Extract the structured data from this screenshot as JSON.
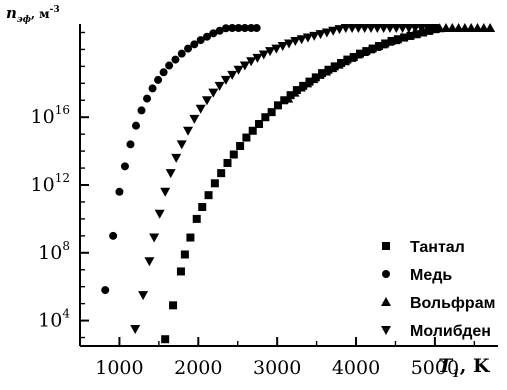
{
  "chart_data": {
    "type": "scatter",
    "ylabel": "n",
    "ylabel_sub": "эф",
    "ylabel_unit": ", м",
    "ylabel_unit_sup": "-3",
    "xlabel": "T",
    "xlabel_sub": "1",
    "xlabel_unit": ", K",
    "xlim": [
      500,
      5800
    ],
    "ylim_log10": [
      2.5,
      21.5
    ],
    "x_scale": "linear",
    "y_scale": "log",
    "x_ticks": [
      {
        "value": 1000,
        "label": "1000"
      },
      {
        "value": 2000,
        "label": "2000"
      },
      {
        "value": 3000,
        "label": "3000"
      },
      {
        "value": 4000,
        "label": "4000"
      },
      {
        "value": 5000,
        "label": "5000"
      }
    ],
    "y_ticks": [
      {
        "exp": 4,
        "base": "10",
        "sup": "4"
      },
      {
        "exp": 8,
        "base": "10",
        "sup": "8"
      },
      {
        "exp": 12,
        "base": "10",
        "sup": "12"
      },
      {
        "exp": 16,
        "base": "10",
        "sup": "16"
      }
    ],
    "legend_position": "bottom-right",
    "series": [
      {
        "name": "Тантал",
        "marker": "square",
        "points": [
          [
            1580,
            2.9
          ],
          [
            1680,
            4.9
          ],
          [
            1780,
            6.9
          ],
          [
            1830,
            7.9
          ],
          [
            1900,
            8.9
          ],
          [
            1980,
            10.0
          ],
          [
            2050,
            10.7
          ],
          [
            2130,
            11.4
          ],
          [
            2210,
            12.1
          ],
          [
            2290,
            12.7
          ],
          [
            2370,
            13.3
          ],
          [
            2450,
            13.8
          ],
          [
            2530,
            14.3
          ],
          [
            2610,
            14.8
          ],
          [
            2690,
            15.2
          ],
          [
            2770,
            15.6
          ],
          [
            2850,
            16.0
          ],
          [
            2930,
            16.3
          ],
          [
            3010,
            16.7
          ],
          [
            3090,
            17.0
          ],
          [
            3170,
            17.3
          ],
          [
            3250,
            17.6
          ],
          [
            3330,
            17.85
          ],
          [
            3410,
            18.1
          ],
          [
            3490,
            18.35
          ],
          [
            3570,
            18.6
          ],
          [
            3650,
            18.8
          ],
          [
            3730,
            19.0
          ],
          [
            3810,
            19.2
          ],
          [
            3890,
            19.4
          ],
          [
            3970,
            19.55
          ],
          [
            4050,
            19.75
          ],
          [
            4130,
            19.9
          ],
          [
            4210,
            20.05
          ],
          [
            4290,
            20.2
          ],
          [
            4370,
            20.35
          ],
          [
            4450,
            20.5
          ],
          [
            4530,
            20.6
          ],
          [
            4610,
            20.7
          ],
          [
            4690,
            20.8
          ],
          [
            4770,
            20.9
          ],
          [
            4850,
            21.0
          ],
          [
            4930,
            21.1
          ],
          [
            5010,
            21.2
          ]
        ]
      },
      {
        "name": "Медь",
        "marker": "circle",
        "points": [
          [
            820,
            5.8
          ],
          [
            920,
            9.0
          ],
          [
            1000,
            11.6
          ],
          [
            1070,
            13.1
          ],
          [
            1140,
            14.4
          ],
          [
            1210,
            15.5
          ],
          [
            1280,
            16.4
          ],
          [
            1350,
            17.1
          ],
          [
            1420,
            17.7
          ],
          [
            1490,
            18.2
          ],
          [
            1560,
            18.65
          ],
          [
            1630,
            19.05
          ],
          [
            1710,
            19.4
          ],
          [
            1790,
            19.75
          ],
          [
            1870,
            20.05
          ],
          [
            1950,
            20.3
          ],
          [
            2030,
            20.55
          ],
          [
            2110,
            20.75
          ],
          [
            2190,
            20.95
          ],
          [
            2270,
            21.1
          ],
          [
            2350,
            21.25
          ],
          [
            2430,
            21.35
          ],
          [
            2510,
            21.45
          ],
          [
            2590,
            21.55
          ],
          [
            2670,
            21.6
          ],
          [
            2740,
            21.65
          ]
        ]
      },
      {
        "name": "Вольфрам",
        "marker": "triangle-up",
        "points": [
          [
            3140,
            17.1
          ],
          [
            3220,
            17.45
          ],
          [
            3300,
            17.75
          ],
          [
            3380,
            18.0
          ],
          [
            3460,
            18.25
          ],
          [
            3540,
            18.5
          ],
          [
            3620,
            18.7
          ],
          [
            3700,
            18.9
          ],
          [
            3780,
            19.1
          ],
          [
            3860,
            19.3
          ],
          [
            3940,
            19.5
          ],
          [
            4020,
            19.7
          ],
          [
            4100,
            19.85
          ],
          [
            4180,
            20.0
          ],
          [
            4260,
            20.15
          ],
          [
            4340,
            20.3
          ],
          [
            4420,
            20.45
          ],
          [
            4500,
            20.55
          ],
          [
            4580,
            20.7
          ],
          [
            4660,
            20.8
          ],
          [
            4740,
            20.9
          ],
          [
            4820,
            21.0
          ],
          [
            4900,
            21.1
          ],
          [
            4980,
            21.2
          ],
          [
            5060,
            21.25
          ],
          [
            5140,
            21.3
          ],
          [
            5220,
            21.35
          ],
          [
            5300,
            21.4
          ],
          [
            5380,
            21.45
          ],
          [
            5460,
            21.5
          ],
          [
            5540,
            21.55
          ],
          [
            5620,
            21.6
          ],
          [
            5700,
            21.65
          ]
        ]
      },
      {
        "name": "Молибден",
        "marker": "triangle-down",
        "points": [
          [
            1200,
            3.5
          ],
          [
            1300,
            5.5
          ],
          [
            1380,
            7.5
          ],
          [
            1440,
            8.9
          ],
          [
            1510,
            10.3
          ],
          [
            1580,
            11.6
          ],
          [
            1650,
            12.7
          ],
          [
            1720,
            13.6
          ],
          [
            1790,
            14.4
          ],
          [
            1870,
            15.2
          ],
          [
            1950,
            15.9
          ],
          [
            2030,
            16.5
          ],
          [
            2110,
            17.0
          ],
          [
            2190,
            17.45
          ],
          [
            2270,
            17.85
          ],
          [
            2350,
            18.2
          ],
          [
            2430,
            18.5
          ],
          [
            2510,
            18.8
          ],
          [
            2590,
            19.05
          ],
          [
            2670,
            19.3
          ],
          [
            2750,
            19.5
          ],
          [
            2830,
            19.7
          ],
          [
            2910,
            19.9
          ],
          [
            2990,
            20.05
          ],
          [
            3070,
            20.2
          ],
          [
            3150,
            20.35
          ],
          [
            3230,
            20.5
          ],
          [
            3310,
            20.6
          ],
          [
            3390,
            20.7
          ],
          [
            3470,
            20.8
          ],
          [
            3550,
            20.9
          ],
          [
            3630,
            21.0
          ],
          [
            3710,
            21.1
          ],
          [
            3790,
            21.2
          ],
          [
            3870,
            21.3
          ],
          [
            3950,
            21.4
          ],
          [
            4030,
            21.5
          ],
          [
            4110,
            21.6
          ],
          [
            4190,
            21.65
          ],
          [
            4270,
            21.7
          ],
          [
            4350,
            21.75
          ],
          [
            4430,
            21.8
          ],
          [
            4510,
            21.85
          ],
          [
            4590,
            21.9
          ],
          [
            4670,
            21.95
          ],
          [
            4750,
            22.0
          ],
          [
            4830,
            22.05
          ],
          [
            4910,
            22.1
          ],
          [
            4990,
            22.15
          ]
        ]
      }
    ]
  }
}
